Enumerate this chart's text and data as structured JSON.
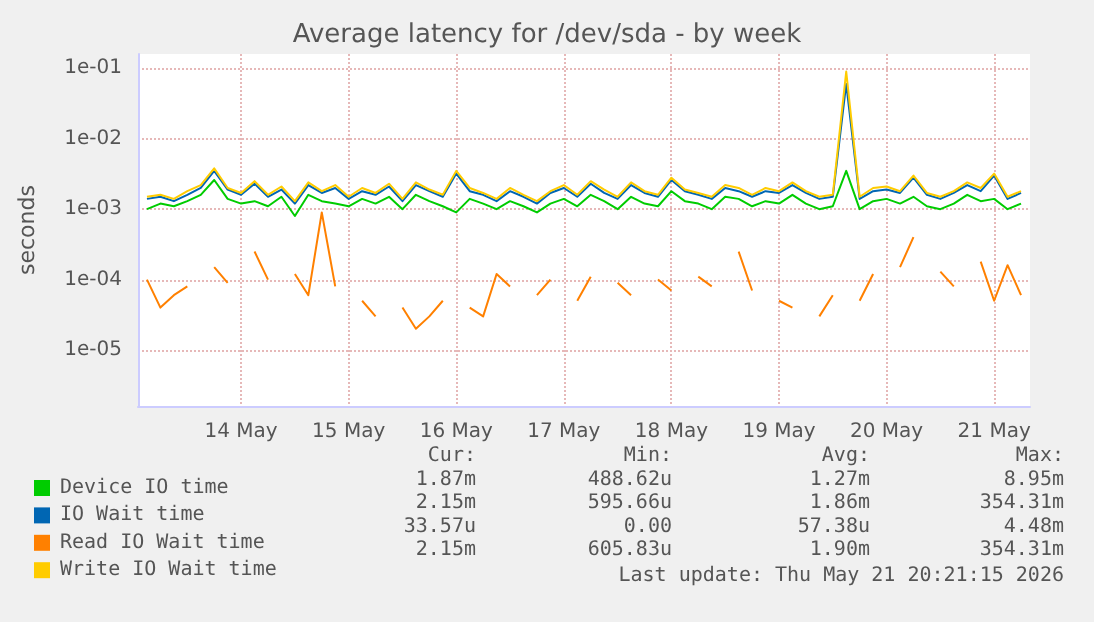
{
  "chart_data": {
    "type": "line",
    "title": "Average latency for /dev/sda - by week",
    "ylabel": "seconds",
    "log": "y",
    "xlim": [
      "2026-05-13T13:00",
      "2026-05-21T20:00"
    ],
    "xticks": [
      {
        "value": "2026-05-14T12:00",
        "label": "14 May"
      },
      {
        "value": "2026-05-15T12:00",
        "label": "15 May"
      },
      {
        "value": "2026-05-16T12:00",
        "label": "16 May"
      },
      {
        "value": "2026-05-17T12:00",
        "label": "17 May"
      },
      {
        "value": "2026-05-18T12:00",
        "label": "18 May"
      },
      {
        "value": "2026-05-19T12:00",
        "label": "19 May"
      },
      {
        "value": "2026-05-20T12:00",
        "label": "20 May"
      },
      {
        "value": "2026-05-21T12:00",
        "label": "21 May"
      }
    ],
    "ylim": [
      1.6e-06,
      0.16
    ],
    "yticks": [
      {
        "value": 1e-05,
        "label": "1e-05"
      },
      {
        "value": 0.0001,
        "label": "1e-04"
      },
      {
        "value": 0.001,
        "label": "1e-03"
      },
      {
        "value": 0.01,
        "label": "1e-02"
      },
      {
        "value": 0.1,
        "label": "1e-01"
      }
    ],
    "grid": true,
    "legend": "bottom left",
    "marker": "none",
    "line_style": "solid",
    "x": [
      "2026-05-13T15:00",
      "2026-05-13T18:00",
      "2026-05-13T21:00",
      "2026-05-14T00:00",
      "2026-05-14T03:00",
      "2026-05-14T06:00",
      "2026-05-14T09:00",
      "2026-05-14T12:00",
      "2026-05-14T15:00",
      "2026-05-14T18:00",
      "2026-05-14T21:00",
      "2026-05-15T00:00",
      "2026-05-15T03:00",
      "2026-05-15T06:00",
      "2026-05-15T09:00",
      "2026-05-15T12:00",
      "2026-05-15T15:00",
      "2026-05-15T18:00",
      "2026-05-15T21:00",
      "2026-05-16T00:00",
      "2026-05-16T03:00",
      "2026-05-16T06:00",
      "2026-05-16T09:00",
      "2026-05-16T12:00",
      "2026-05-16T15:00",
      "2026-05-16T18:00",
      "2026-05-16T21:00",
      "2026-05-17T00:00",
      "2026-05-17T03:00",
      "2026-05-17T06:00",
      "2026-05-17T09:00",
      "2026-05-17T12:00",
      "2026-05-17T15:00",
      "2026-05-17T18:00",
      "2026-05-17T21:00",
      "2026-05-18T00:00",
      "2026-05-18T03:00",
      "2026-05-18T06:00",
      "2026-05-18T09:00",
      "2026-05-18T12:00",
      "2026-05-18T15:00",
      "2026-05-18T18:00",
      "2026-05-18T21:00",
      "2026-05-19T00:00",
      "2026-05-19T03:00",
      "2026-05-19T06:00",
      "2026-05-19T09:00",
      "2026-05-19T12:00",
      "2026-05-19T15:00",
      "2026-05-19T18:00",
      "2026-05-19T21:00",
      "2026-05-20T00:00",
      "2026-05-20T03:00",
      "2026-05-20T06:00",
      "2026-05-20T09:00",
      "2026-05-20T12:00",
      "2026-05-20T15:00",
      "2026-05-20T18:00",
      "2026-05-20T21:00",
      "2026-05-21T00:00",
      "2026-05-21T03:00",
      "2026-05-21T06:00",
      "2026-05-21T09:00",
      "2026-05-21T12:00",
      "2026-05-21T15:00",
      "2026-05-21T18:00"
    ],
    "series": [
      {
        "name": "Device IO time",
        "color": "#00cc00",
        "values": [
          0.001,
          0.0012,
          0.0011,
          0.0013,
          0.0016,
          0.0026,
          0.0014,
          0.0012,
          0.0013,
          0.0011,
          0.0015,
          0.0008,
          0.0016,
          0.0013,
          0.0012,
          0.0011,
          0.0014,
          0.0012,
          0.0015,
          0.001,
          0.0016,
          0.0013,
          0.0011,
          0.0009,
          0.0014,
          0.0012,
          0.001,
          0.0013,
          0.0011,
          0.0009,
          0.0012,
          0.0014,
          0.0011,
          0.0016,
          0.0013,
          0.001,
          0.0015,
          0.0012,
          0.0011,
          0.0018,
          0.0013,
          0.0012,
          0.001,
          0.0015,
          0.0014,
          0.0011,
          0.0013,
          0.0012,
          0.0016,
          0.0012,
          0.001,
          0.0011,
          0.0035,
          0.001,
          0.0013,
          0.0014,
          0.0012,
          0.0015,
          0.0011,
          0.001,
          0.0012,
          0.0016,
          0.0013,
          0.0014,
          0.001,
          0.0012
        ]
      },
      {
        "name": "IO Wait time",
        "color": "#0066b3",
        "values": [
          0.0014,
          0.0015,
          0.0013,
          0.0016,
          0.002,
          0.0035,
          0.0019,
          0.0016,
          0.0023,
          0.0015,
          0.0019,
          0.0012,
          0.0022,
          0.0017,
          0.002,
          0.0014,
          0.0018,
          0.0016,
          0.0021,
          0.0013,
          0.0022,
          0.0018,
          0.0015,
          0.0032,
          0.0018,
          0.0016,
          0.0013,
          0.0018,
          0.0015,
          0.0012,
          0.0017,
          0.002,
          0.0015,
          0.0023,
          0.0017,
          0.0014,
          0.0022,
          0.0017,
          0.0015,
          0.0026,
          0.0018,
          0.0016,
          0.0014,
          0.002,
          0.0018,
          0.0015,
          0.0018,
          0.0017,
          0.0022,
          0.0017,
          0.0014,
          0.0015,
          0.06,
          0.0014,
          0.0018,
          0.0019,
          0.0017,
          0.0028,
          0.0016,
          0.0014,
          0.0017,
          0.0022,
          0.0018,
          0.003,
          0.0014,
          0.0017
        ]
      },
      {
        "name": "Read IO Wait time",
        "color": "#ff8000",
        "values": [
          0.0001,
          4e-05,
          6e-05,
          8e-05,
          null,
          0.00015,
          9e-05,
          null,
          0.00025,
          0.0001,
          null,
          0.00012,
          6e-05,
          0.0009,
          8e-05,
          null,
          5e-05,
          3e-05,
          null,
          4e-05,
          2e-05,
          3e-05,
          5e-05,
          null,
          4e-05,
          3e-05,
          0.00012,
          8e-05,
          null,
          6e-05,
          0.0001,
          null,
          5e-05,
          0.00011,
          null,
          9e-05,
          6e-05,
          null,
          0.0001,
          7e-05,
          null,
          0.00011,
          8e-05,
          null,
          0.00025,
          7e-05,
          null,
          5e-05,
          4e-05,
          null,
          3e-05,
          6e-05,
          null,
          5e-05,
          0.00012,
          null,
          0.00015,
          0.0004,
          null,
          0.00013,
          8e-05,
          null,
          0.00018,
          5e-05,
          0.00016,
          6e-05
        ]
      },
      {
        "name": "Write IO Wait time",
        "color": "#ffcc00",
        "values": [
          0.0015,
          0.0016,
          0.0014,
          0.0018,
          0.0022,
          0.0038,
          0.002,
          0.0017,
          0.0025,
          0.0016,
          0.0021,
          0.0013,
          0.0024,
          0.0018,
          0.0022,
          0.0015,
          0.002,
          0.0017,
          0.0023,
          0.0014,
          0.0024,
          0.0019,
          0.0016,
          0.0035,
          0.002,
          0.0017,
          0.0014,
          0.002,
          0.0016,
          0.0013,
          0.0018,
          0.0022,
          0.0016,
          0.0025,
          0.0019,
          0.0015,
          0.0024,
          0.0018,
          0.0016,
          0.0028,
          0.0019,
          0.0017,
          0.0015,
          0.0022,
          0.002,
          0.0016,
          0.002,
          0.0018,
          0.0024,
          0.0018,
          0.0015,
          0.0016,
          0.09,
          0.0015,
          0.002,
          0.0021,
          0.0018,
          0.003,
          0.0017,
          0.0015,
          0.0018,
          0.0024,
          0.002,
          0.0032,
          0.0015,
          0.0018
        ]
      }
    ],
    "annotations": [
      "Cur:",
      "Min:",
      "Avg:",
      "Max:",
      "1.87m",
      "488.62u",
      "1.27m",
      "8.95m",
      "2.15m",
      "595.66u",
      "1.86m",
      "354.31m",
      "33.57u",
      "0.00",
      "57.38u",
      "4.48m",
      "2.15m",
      "605.83u",
      "1.90m",
      "354.31m",
      "Last update: Thu May 21 20:21:15 2026"
    ]
  }
}
